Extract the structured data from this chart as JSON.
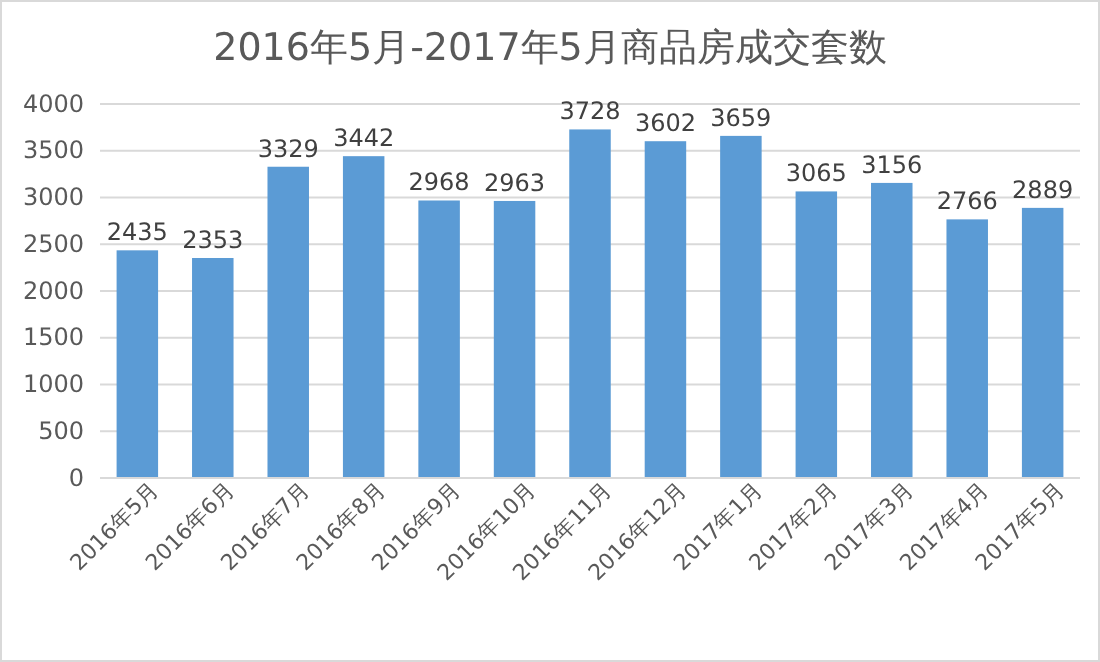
{
  "chart_data": {
    "type": "bar",
    "title": "2016年5月-2017年5月商品房成交套数",
    "categories": [
      "2016年5月",
      "2016年6月",
      "2016年7月",
      "2016年8月",
      "2016年9月",
      "2016年10月",
      "2016年11月",
      "2016年12月",
      "2017年1月",
      "2017年2月",
      "2017年3月",
      "2017年4月",
      "2017年5月"
    ],
    "values": [
      2435,
      2353,
      3329,
      3442,
      2968,
      2963,
      3728,
      3602,
      3659,
      3065,
      3156,
      2766,
      2889
    ],
    "color": "#5b9bd5",
    "ylim": [
      0,
      4000
    ],
    "yticks": [
      0,
      500,
      1000,
      1500,
      2000,
      2500,
      3000,
      3500,
      4000
    ],
    "grid": "y",
    "data_labels": true
  }
}
